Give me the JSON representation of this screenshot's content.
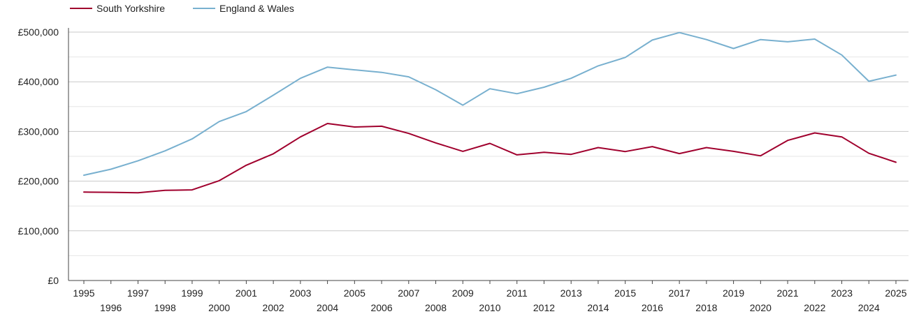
{
  "chart_data": {
    "type": "line",
    "title": "",
    "xlabel": "",
    "ylabel": "",
    "x": [
      1995,
      1996,
      1997,
      1998,
      1999,
      2000,
      2001,
      2002,
      2003,
      2004,
      2005,
      2006,
      2007,
      2008,
      2009,
      2010,
      2011,
      2012,
      2013,
      2014,
      2015,
      2016,
      2017,
      2018,
      2019,
      2020,
      2021,
      2022,
      2023,
      2024,
      2025
    ],
    "x_tick_labels": [
      "1995",
      "1996",
      "1997",
      "1998",
      "1999",
      "2000",
      "2001",
      "2002",
      "2003",
      "2004",
      "2005",
      "2006",
      "2007",
      "2008",
      "2009",
      "2010",
      "2011",
      "2012",
      "2013",
      "2014",
      "2015",
      "2016",
      "2017",
      "2018",
      "2019",
      "2020",
      "2021",
      "2022",
      "2023",
      "2024",
      "2025"
    ],
    "y_tick_labels": [
      "£0",
      "£100,000",
      "£200,000",
      "£300,000",
      "£400,000",
      "£500,000"
    ],
    "y_ticks": [
      0,
      100000,
      200000,
      300000,
      400000,
      500000
    ],
    "ylim": [
      0,
      500000
    ],
    "grid": true,
    "legend_position": "top-left",
    "series": [
      {
        "name": "South Yorkshire",
        "color": "#a0002d",
        "values": [
          178000,
          177500,
          176500,
          181500,
          182500,
          201000,
          232000,
          255000,
          289000,
          316000,
          309000,
          310500,
          296000,
          277000,
          260000,
          276000,
          253000,
          258000,
          254000,
          267500,
          259500,
          269500,
          255500,
          267500,
          260000,
          251000,
          282000,
          297000,
          289000,
          256000,
          238000
        ]
      },
      {
        "name": "England & Wales",
        "color": "#78b0cf",
        "values": [
          212000,
          224000,
          241000,
          261000,
          285000,
          320000,
          340000,
          373000,
          407000,
          429500,
          424000,
          419000,
          410000,
          384000,
          353000,
          386000,
          376000,
          389000,
          407000,
          432000,
          449000,
          484000,
          499000,
          485000,
          467000,
          485000,
          480500,
          486000,
          454000,
          401000,
          413500
        ]
      }
    ]
  }
}
